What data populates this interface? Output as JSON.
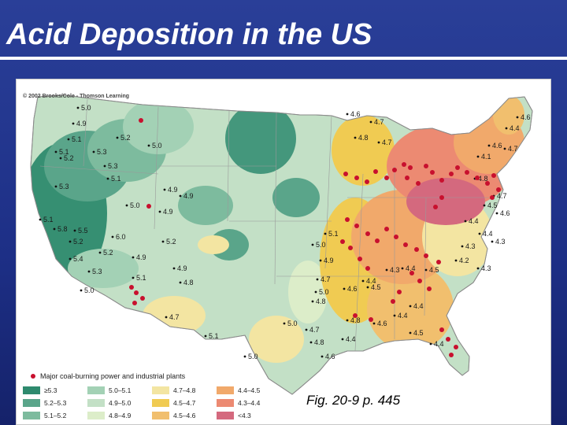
{
  "title": "Acid Deposition in the US",
  "copyright": "© 2002 Brooks/Cole - Thomson Learning",
  "caption": "Fig. 20-9 p. 445",
  "legend": {
    "plants_label": "Major coal-burning power and industrial plants",
    "plant_color": "#c8102e",
    "items": [
      {
        "label": "≥5.3",
        "color": "#2e8a6e"
      },
      {
        "label": "5.2–5.3",
        "color": "#5aa58a"
      },
      {
        "label": "5.1–5.2",
        "color": "#7dbb9e"
      },
      {
        "label": "5.0–5.1",
        "color": "#a3d1b5"
      },
      {
        "label": "4.9–5.0",
        "color": "#c3e0c6"
      },
      {
        "label": "4.8–4.9",
        "color": "#dcedc9"
      },
      {
        "label": "4.7–4.8",
        "color": "#f3e5a2"
      },
      {
        "label": "4.5–4.7",
        "color": "#f0cb52"
      },
      {
        "label": "4.5–4.6",
        "color": "#f1bf6e"
      },
      {
        "label": "4.4–4.5",
        "color": "#f1a96b"
      },
      {
        "label": "4.3–4.4",
        "color": "#ec8a72"
      },
      {
        "label": "<4.3",
        "color": "#d4697e"
      }
    ]
  },
  "map": {
    "labels": [
      "5.0",
      "4.9",
      "5.1",
      "5.1",
      "5.2",
      "5.3",
      "5.2",
      "5.0",
      "5.3",
      "5.3",
      "5.1",
      "5.0",
      "4.9",
      "4.9",
      "4.9",
      "5.1",
      "5.8",
      "5.5",
      "5.2",
      "6.0",
      "5.2",
      "4.9",
      "5.3",
      "5.2",
      "5.4",
      "4.9",
      "5.1",
      "4.8",
      "4.7",
      "5.0",
      "5.1",
      "5.0",
      "5.0",
      "4.7",
      "4.8",
      "4.6",
      "4.8",
      "4.7",
      "4.4",
      "4.6",
      "4.5",
      "4.4",
      "4.4",
      "4.4",
      "4.5",
      "4.6",
      "4.4",
      "4.3",
      "4.4",
      "4.5",
      "4.2",
      "4.3",
      "4.3",
      "4.4",
      "4.4",
      "4.3",
      "4.5",
      "4.6",
      "4.7",
      "4.8",
      "4.6",
      "4.4",
      "4.1",
      "4.7",
      "4.6",
      "4.6",
      "4.7",
      "4.8",
      "4.7",
      "4.9",
      "5.0",
      "5.1",
      "5.0",
      "4.8"
    ],
    "plants": [
      [
        158,
        52
      ],
      [
        168,
        161
      ],
      [
        146,
        264
      ],
      [
        152,
        271
      ],
      [
        160,
        278
      ],
      [
        150,
        284
      ],
      [
        418,
        120
      ],
      [
        432,
        125
      ],
      [
        445,
        130
      ],
      [
        456,
        117
      ],
      [
        470,
        125
      ],
      [
        480,
        115
      ],
      [
        492,
        108
      ],
      [
        500,
        112
      ],
      [
        496,
        125
      ],
      [
        510,
        132
      ],
      [
        520,
        110
      ],
      [
        528,
        118
      ],
      [
        540,
        128
      ],
      [
        552,
        120
      ],
      [
        560,
        112
      ],
      [
        572,
        118
      ],
      [
        585,
        125
      ],
      [
        598,
        132
      ],
      [
        606,
        122
      ],
      [
        612,
        140
      ],
      [
        604,
        150
      ],
      [
        540,
        150
      ],
      [
        532,
        162
      ],
      [
        420,
        178
      ],
      [
        432,
        186
      ],
      [
        446,
        196
      ],
      [
        458,
        205
      ],
      [
        470,
        190
      ],
      [
        482,
        200
      ],
      [
        494,
        210
      ],
      [
        508,
        216
      ],
      [
        520,
        224
      ],
      [
        536,
        232
      ],
      [
        502,
        246
      ],
      [
        512,
        256
      ],
      [
        524,
        266
      ],
      [
        486,
        270
      ],
      [
        478,
        282
      ],
      [
        436,
        228
      ],
      [
        446,
        240
      ],
      [
        414,
        206
      ],
      [
        424,
        214
      ],
      [
        430,
        300
      ],
      [
        450,
        305
      ],
      [
        540,
        318
      ],
      [
        548,
        330
      ],
      [
        558,
        340
      ],
      [
        552,
        350
      ]
    ]
  }
}
